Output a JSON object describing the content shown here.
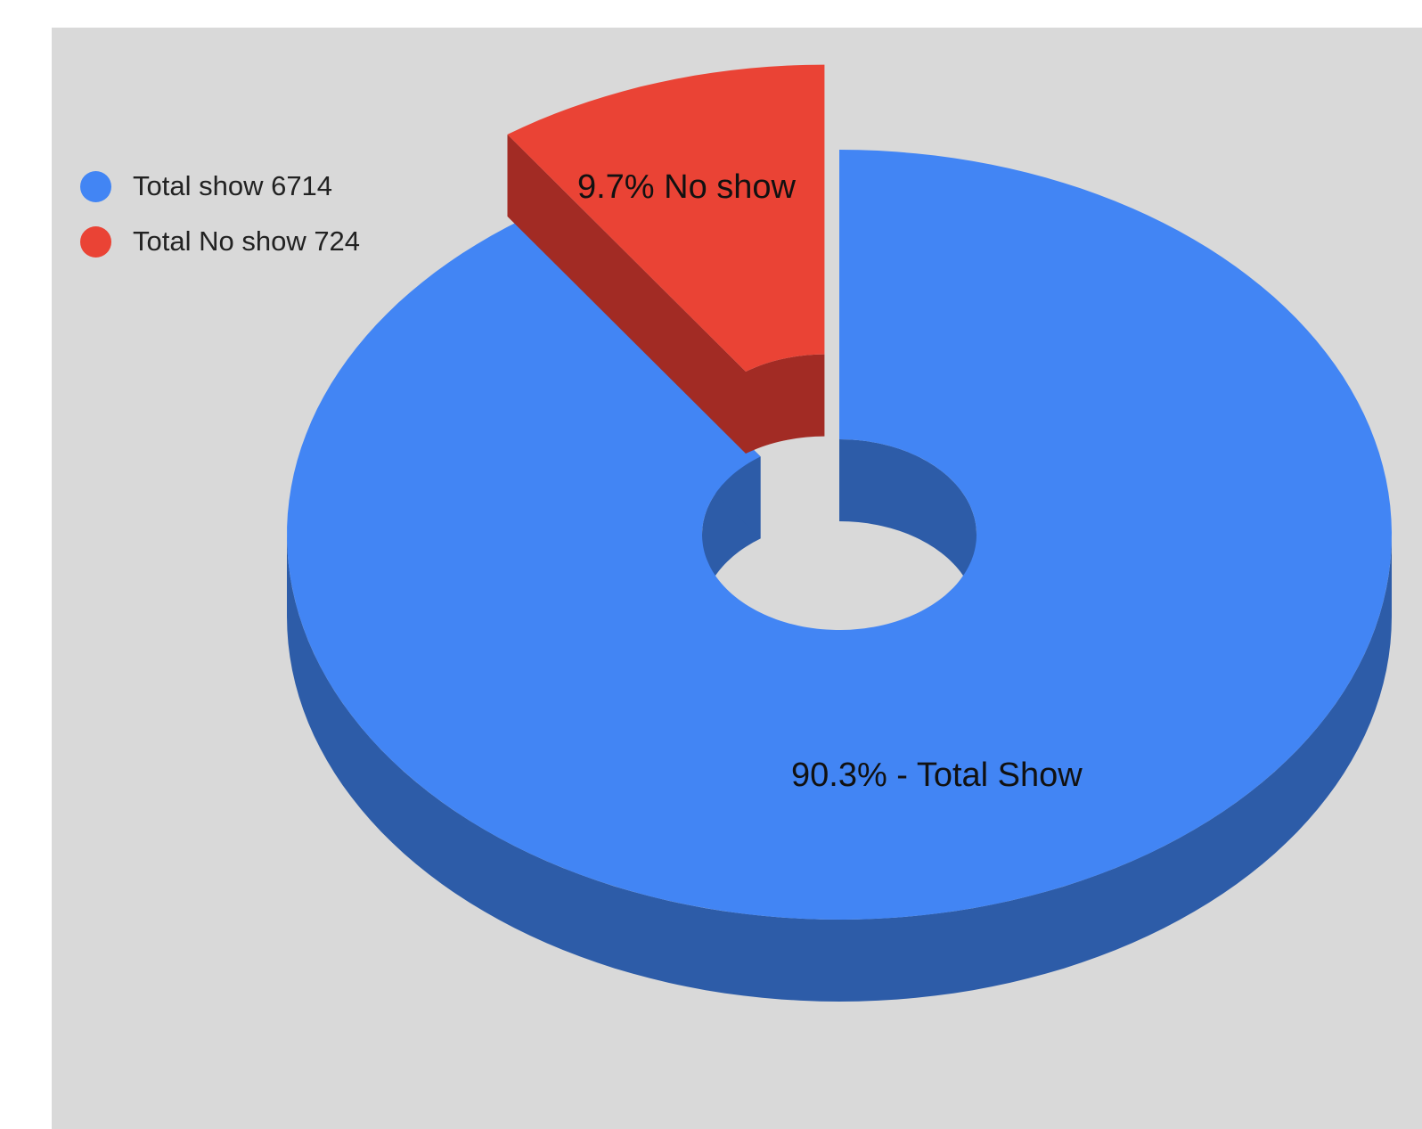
{
  "chart_data": {
    "type": "pie",
    "style": "3d-donut-exploded",
    "legend_position": "top-left",
    "series": [
      {
        "name": "Total show",
        "legend_label": "Total show  6714",
        "value": 6714,
        "percent": 90.3,
        "slice_label": "90.3% - Total Show",
        "color": "#4285f4",
        "side_color": "#2d5ca8"
      },
      {
        "name": "Total No show",
        "legend_label": "Total No show 724",
        "value": 724,
        "percent": 9.7,
        "slice_label": "9.7% No show",
        "color": "#ea4335",
        "side_color": "#a22b24"
      }
    ]
  },
  "colors": {
    "background": "#d9d9d9",
    "page": "#ffffff"
  }
}
